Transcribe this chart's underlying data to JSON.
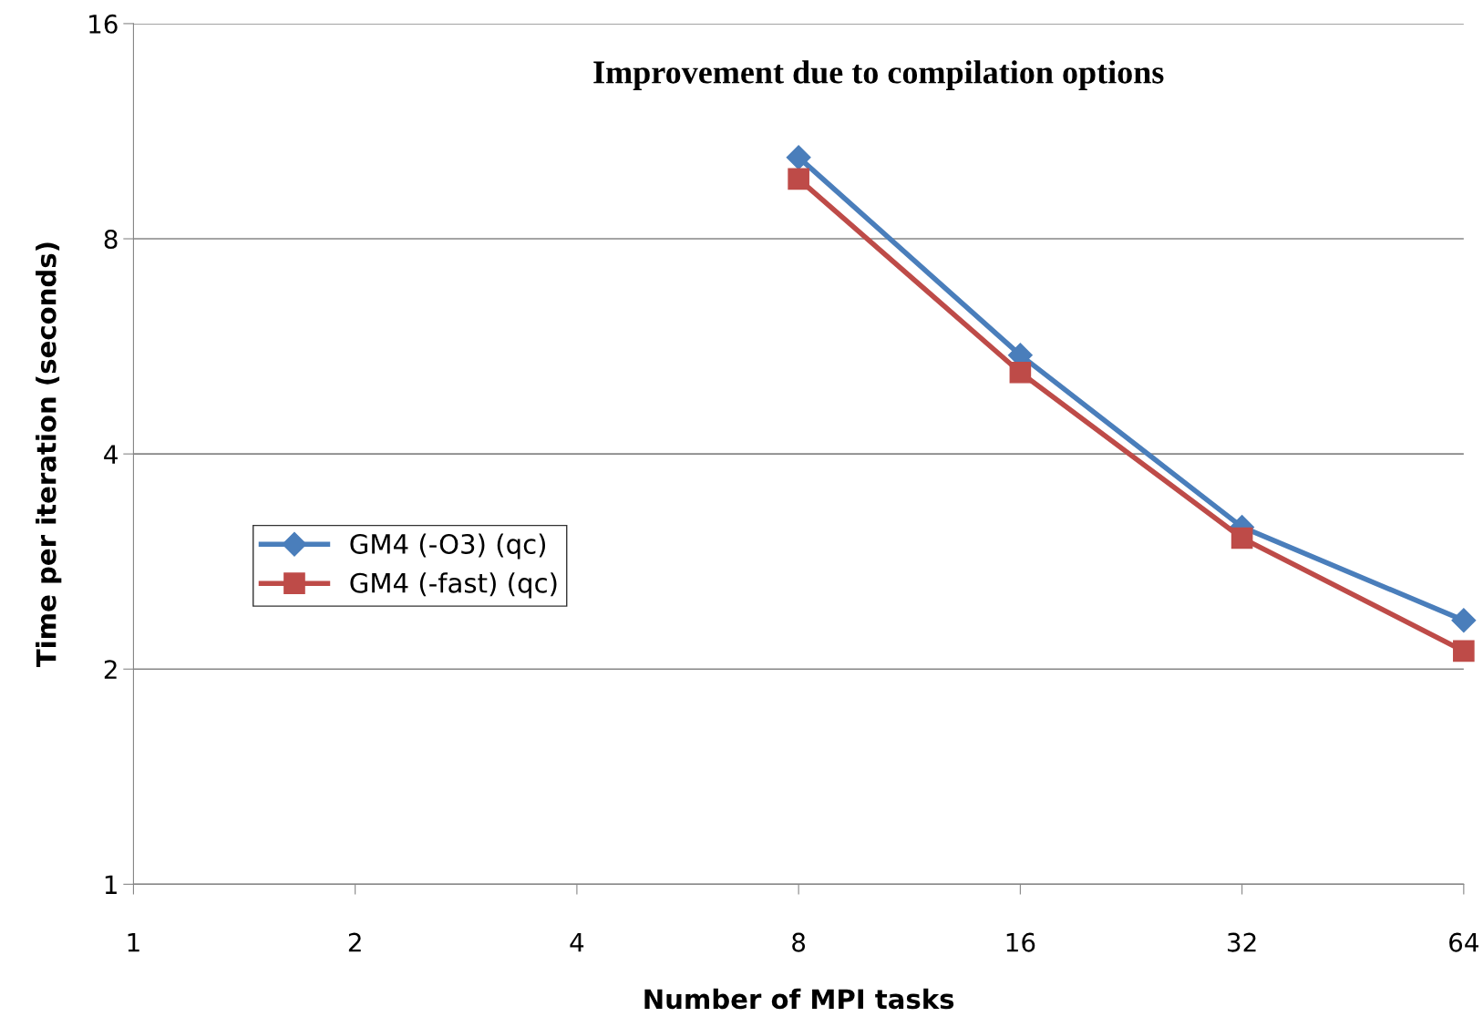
{
  "chart_data": {
    "type": "line",
    "title": "Improvement due to compilation options",
    "xlabel": "Number of MPI tasks",
    "ylabel": "Time per iteration (seconds)",
    "x": [
      8,
      16,
      32,
      64
    ],
    "series": [
      {
        "name": "GM4 (-O3) (qc)",
        "color": "#4a7ebb",
        "marker": "diamond",
        "values": [
          10.4,
          5.5,
          3.16,
          2.34
        ]
      },
      {
        "name": "GM4 (-fast) (qc)",
        "color": "#be4b48",
        "marker": "square",
        "values": [
          9.7,
          5.2,
          3.05,
          2.12
        ]
      }
    ],
    "log": "xy",
    "xlim": [
      1,
      64
    ],
    "xticks": [
      1,
      2,
      4,
      8,
      16,
      32,
      64
    ],
    "ylim": [
      1,
      16
    ],
    "yticks": [
      1,
      2,
      4,
      8,
      16
    ],
    "grid": "y",
    "legend": "left",
    "line_style": "solid"
  }
}
